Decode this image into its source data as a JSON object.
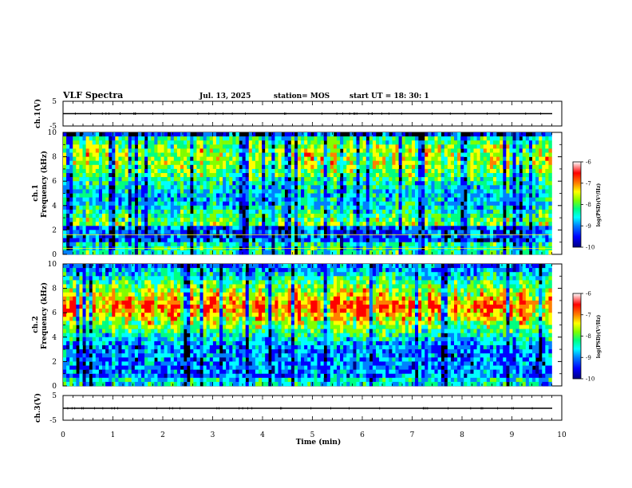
{
  "header": {
    "title": "VLF Spectra",
    "date": "Jul. 13, 2025",
    "station": "station= MOS",
    "start": "start UT =  18: 30: 1"
  },
  "colors": {
    "axis": "#000000",
    "trace": "#000000",
    "background": "#000000",
    "colormap": [
      "#00007f",
      "#0000ff",
      "#0080ff",
      "#00ffff",
      "#00ff80",
      "#80ff00",
      "#ffff00",
      "#ff8000",
      "#ff0000",
      "#ffffff"
    ]
  },
  "chart_data": [
    {
      "type": "line",
      "name": "ch1-waveform",
      "ylabel": "ch.1(V)",
      "ylim": [
        -5,
        5
      ],
      "y_ticks": [
        "5",
        "-5"
      ],
      "xlim": [
        0,
        10
      ],
      "constant_value": 0
    },
    {
      "type": "heatmap",
      "name": "ch1-spectrogram",
      "ylabel_channel": "ch.1",
      "ylabel": "Frequency (kHz)",
      "ylim": [
        0,
        10
      ],
      "y_ticks": [
        "0",
        "2",
        "4",
        "6",
        "8",
        "10"
      ],
      "xlim": [
        0,
        9.8
      ],
      "colorbar": {
        "label": "log(PSD)(V²/Hz)",
        "range": [
          -10,
          -6
        ],
        "ticks": [
          "-6",
          "-7",
          "-8",
          "-9",
          "-10"
        ]
      },
      "line_features_khz": [
        0.5,
        1.6
      ]
    },
    {
      "type": "heatmap",
      "name": "ch2-spectrogram",
      "ylabel_channel": "ch.2",
      "ylabel": "Frequency (kHz)",
      "ylim": [
        0,
        10
      ],
      "y_ticks": [
        "0",
        "2",
        "4",
        "6",
        "8",
        "10"
      ],
      "xlim": [
        0,
        9.8
      ],
      "colorbar": {
        "label": "log(PSD)(V²/Hz)",
        "range": [
          -10,
          -6
        ],
        "ticks": [
          "-6",
          "-7",
          "-8",
          "-9",
          "-10"
        ]
      },
      "band_peak_khz": 6.5
    },
    {
      "type": "line",
      "name": "ch3-waveform",
      "ylabel": "ch.3(V)",
      "ylim": [
        -5,
        5
      ],
      "y_ticks": [
        "5",
        "-5"
      ],
      "xlim": [
        0,
        10
      ],
      "constant_value": 0
    }
  ],
  "x_axis": {
    "label": "Time (min)",
    "ticks": [
      "0",
      "1",
      "2",
      "3",
      "4",
      "5",
      "6",
      "7",
      "8",
      "9",
      "10"
    ],
    "range": [
      0,
      10
    ]
  }
}
